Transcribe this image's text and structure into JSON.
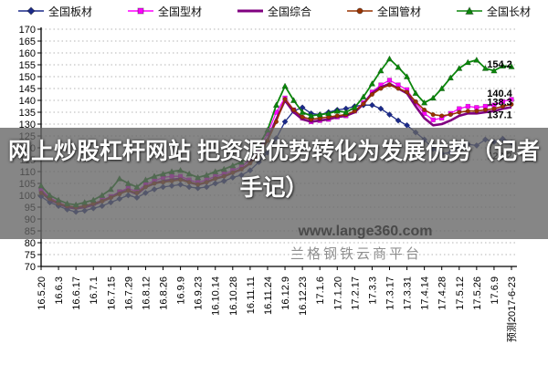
{
  "overlay": {
    "headline": "网上炒股杠杆网站 把资源优势转化为发展优势（记者手记）"
  },
  "watermarks": {
    "site": "www.lange360.com",
    "platform": "兰格钢铁云商平台"
  },
  "chart_data": {
    "type": "line",
    "title": "",
    "xlabel": "",
    "ylabel": "",
    "ylim": [
      70,
      170
    ],
    "y_step": 5,
    "grid": "horizontal-dotted",
    "legend_position": "top",
    "x_labels": [
      "16.5.20",
      "16.6.3",
      "16.6.17",
      "16.7.1",
      "16.7.15",
      "16.7.29",
      "16.8.12",
      "16.8.26",
      "16.9.9",
      "16.9.23",
      "16.10.14",
      "16.10.28",
      "16.11.11",
      "16.11.24",
      "16.12.9",
      "16.12.23",
      "17.1.6",
      "17.1.20",
      "17.2.17",
      "17.3.3",
      "17.3.17",
      "17.3.31",
      "17.4.14",
      "17.4.28",
      "17.5.12",
      "17.5.26",
      "17.6.9",
      "预测2017-6-23"
    ],
    "series": [
      {
        "name": "全国板材",
        "key": "plate",
        "color": "#1B2A8A",
        "marker": "diamond",
        "end_label": "122.2",
        "values": [
          99.5,
          97,
          95.5,
          94,
          93,
          93.5,
          94.5,
          95.5,
          97,
          98.5,
          100,
          99,
          101,
          102.5,
          103.5,
          104,
          104.5,
          103.5,
          103,
          103.5,
          105,
          106,
          107.5,
          108.5,
          110.5,
          114,
          118,
          124,
          131,
          135.5,
          137,
          134.5,
          134,
          135,
          136,
          136.5,
          137.5,
          138,
          138,
          136.5,
          134,
          131.5,
          129.5,
          126.5,
          123.5,
          119.5,
          117.5,
          118,
          120.5,
          121.5,
          121,
          123.5,
          122.5,
          123.8,
          122.2
        ]
      },
      {
        "name": "全国型材",
        "key": "section",
        "color": "#FF00FF",
        "marker": "square",
        "end_label": "140.4",
        "values": [
          102.5,
          99,
          97,
          95.5,
          95,
          95.5,
          96.5,
          98,
          99.5,
          101.5,
          103,
          101.5,
          104.5,
          106,
          107.5,
          108,
          108,
          106.5,
          105.5,
          106.5,
          108,
          109,
          110.5,
          112,
          115,
          119,
          126,
          135,
          141,
          136,
          132.5,
          131,
          131.5,
          132,
          133,
          133.5,
          135.5,
          139,
          143.5,
          146.5,
          148.5,
          146.5,
          144.5,
          139,
          134.5,
          131.8,
          132.5,
          134.5,
          136.5,
          137.5,
          137,
          137.5,
          138,
          139.5,
          140.4
        ]
      },
      {
        "name": "全国综合",
        "key": "composite",
        "color": "#800080",
        "marker": "none",
        "end_label": "137.1",
        "values": [
          101.5,
          98,
          96.5,
          95,
          94.5,
          95,
          96,
          97.5,
          99,
          101,
          102,
          100.5,
          103.5,
          105,
          106,
          106.5,
          107,
          105.5,
          104.5,
          105.5,
          107,
          108,
          109.5,
          111,
          113.5,
          117.5,
          123.5,
          132,
          140,
          135,
          132,
          131,
          131.5,
          132,
          133,
          133.5,
          135,
          138.5,
          143,
          145.5,
          147,
          145,
          143,
          137.5,
          132.5,
          129.5,
          130,
          131.5,
          133.5,
          134.5,
          134.5,
          135,
          135.5,
          136.5,
          137.1
        ]
      },
      {
        "name": "全国管材",
        "key": "pipe",
        "color": "#993300",
        "marker": "circle",
        "end_label": "138.3",
        "values": [
          101,
          98.5,
          96.5,
          95.5,
          95,
          95.5,
          96.5,
          97.5,
          99,
          100.5,
          102,
          101,
          103.5,
          105,
          105.5,
          106,
          106.5,
          105.5,
          104.5,
          105.5,
          107,
          108,
          109.5,
          111,
          113.5,
          117,
          123,
          131,
          140.5,
          136,
          133,
          132,
          132.5,
          133,
          133.5,
          134,
          135.5,
          138.5,
          142.5,
          145,
          146.5,
          145,
          143.5,
          139.5,
          136,
          134,
          133.5,
          134,
          135,
          135.5,
          135.5,
          136,
          136.5,
          137.5,
          138.3
        ]
      },
      {
        "name": "全国长材",
        "key": "long",
        "color": "#0B860B",
        "marker": "triangle",
        "end_label": "154.2",
        "values": [
          104,
          100,
          98,
          96.5,
          96,
          97,
          98,
          100,
          102.5,
          107,
          105,
          103.5,
          106.5,
          108,
          109,
          110,
          110.5,
          109,
          107.5,
          108.5,
          110,
          111,
          112.5,
          114,
          117,
          121,
          127.5,
          138,
          146,
          140,
          135,
          133.5,
          134,
          134.5,
          135.5,
          135,
          137,
          141.5,
          147,
          152.5,
          157.5,
          154,
          150,
          143,
          139,
          141,
          145,
          149.5,
          153.5,
          156,
          157,
          153.5,
          152.5,
          154.5,
          154.2
        ]
      }
    ]
  }
}
